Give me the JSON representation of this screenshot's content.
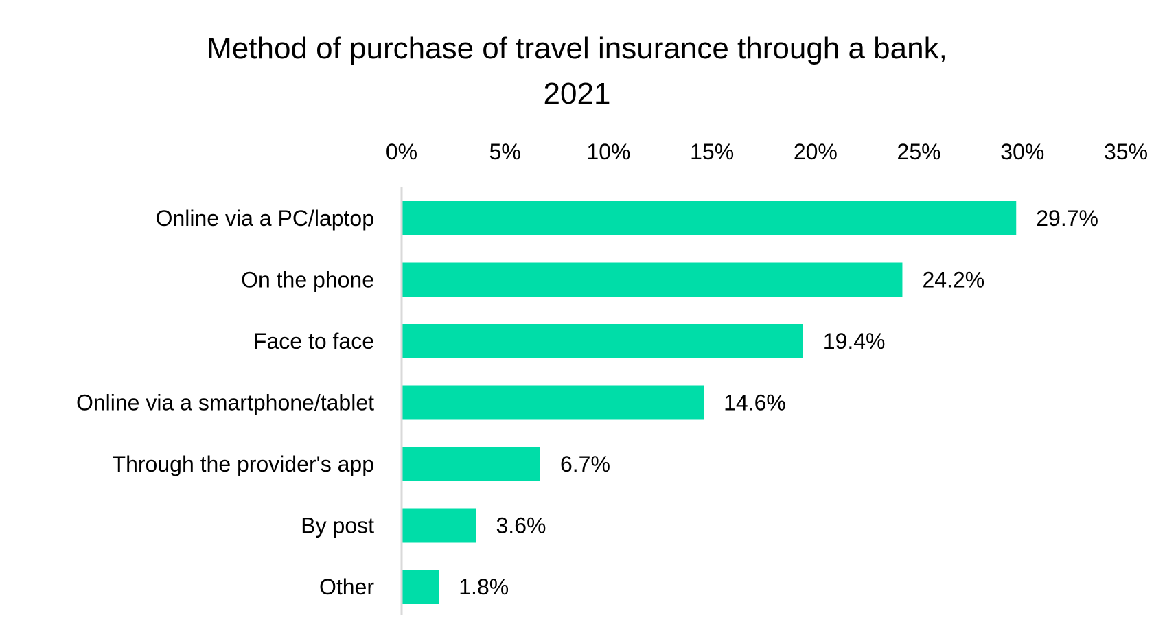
{
  "chart_data": {
    "type": "bar",
    "orientation": "horizontal",
    "title_lines": [
      "Method of purchase of travel insurance through a bank,",
      "2021"
    ],
    "categories": [
      "Online via a PC/laptop",
      "On the phone",
      "Face to face",
      "Online via a smartphone/tablet",
      "Through the provider's app",
      "By post",
      "Other"
    ],
    "values": [
      29.7,
      24.2,
      19.4,
      14.6,
      6.7,
      3.6,
      1.8
    ],
    "value_labels": [
      "29.7%",
      "24.2%",
      "19.4%",
      "14.6%",
      "6.7%",
      "3.6%",
      "1.8%"
    ],
    "xlim": [
      0,
      35
    ],
    "x_ticks": [
      0,
      5,
      10,
      15,
      20,
      25,
      30,
      35
    ],
    "x_tick_labels": [
      "0%",
      "5%",
      "10%",
      "15%",
      "20%",
      "25%",
      "30%",
      "35%"
    ],
    "x_axis_position": "top",
    "grid": false,
    "legend": "none",
    "bar_color": "#00DDA8",
    "axis_line_color": "#D9D9D9"
  }
}
